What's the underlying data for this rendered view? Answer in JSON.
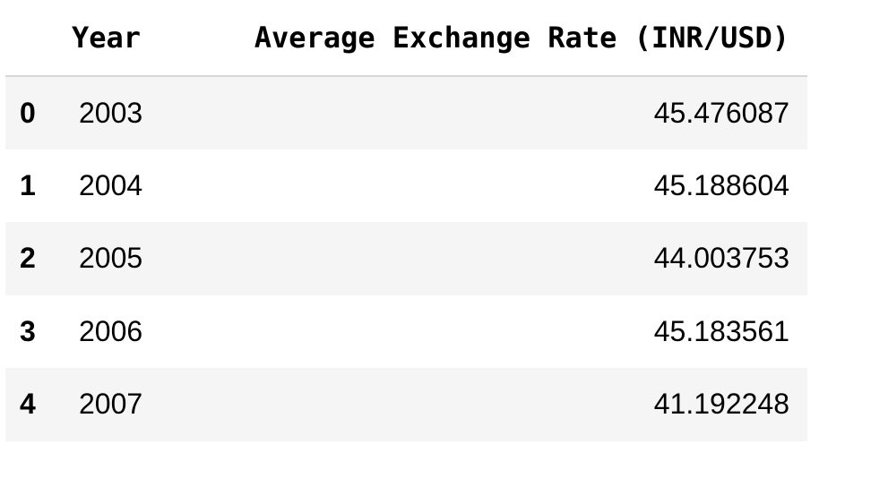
{
  "table": {
    "headers": {
      "index": "",
      "year": "Year",
      "rate": "Average Exchange Rate (INR/USD)"
    },
    "rows": [
      {
        "index": "0",
        "year": "2003",
        "rate": "45.476087"
      },
      {
        "index": "1",
        "year": "2004",
        "rate": "45.188604"
      },
      {
        "index": "2",
        "year": "2005",
        "rate": "44.003753"
      },
      {
        "index": "3",
        "year": "2006",
        "rate": "45.183561"
      },
      {
        "index": "4",
        "year": "2007",
        "rate": "41.192248"
      }
    ]
  },
  "colors": {
    "stripe": "#f5f5f5",
    "header_rule": "#d7d7d7",
    "text": "#000000"
  }
}
